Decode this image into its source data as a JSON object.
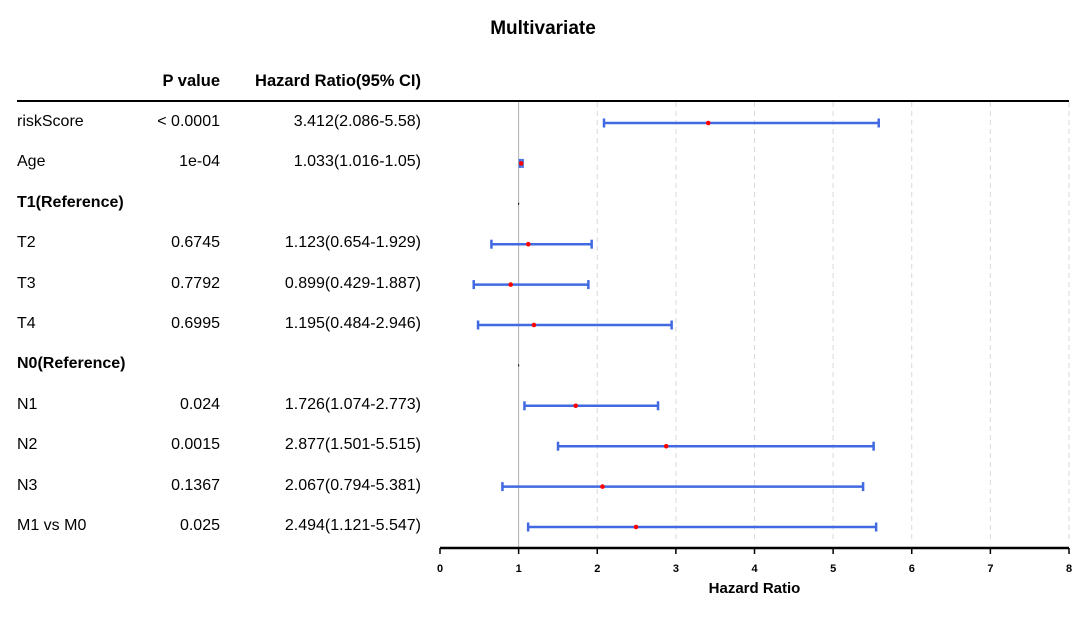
{
  "chart_data": {
    "type": "forest",
    "title": "Multivariate",
    "columns": {
      "pvalue": "P value",
      "hr": "Hazard Ratio(95% CI)"
    },
    "xlabel": "Hazard Ratio",
    "xlim": [
      0,
      8
    ],
    "xticks": [
      "0",
      "1",
      "2",
      "3",
      "4",
      "5",
      "6",
      "7",
      "8"
    ],
    "reference_line": 1,
    "grid": "vertical dashed",
    "colors": {
      "ci": "#4169e1",
      "point": "#ff0000",
      "grid": "#d9d9d9",
      "ref_line": "#b0b0b0"
    },
    "rows": [
      {
        "label": "riskScore",
        "pvalue": "< 0.0001",
        "hr_text": "3.412(2.086-5.58)",
        "hr": 3.412,
        "lo": 2.086,
        "hi": 5.58,
        "reference": false
      },
      {
        "label": "Age",
        "pvalue": "1e-04",
        "hr_text": "1.033(1.016-1.05)",
        "hr": 1.033,
        "lo": 1.016,
        "hi": 1.05,
        "reference": false
      },
      {
        "label": "T1(Reference)",
        "pvalue": "",
        "hr_text": "",
        "hr": 1,
        "lo": 1,
        "hi": 1,
        "reference": true
      },
      {
        "label": "T2",
        "pvalue": "0.6745",
        "hr_text": "1.123(0.654-1.929)",
        "hr": 1.123,
        "lo": 0.654,
        "hi": 1.929,
        "reference": false
      },
      {
        "label": "T3",
        "pvalue": "0.7792",
        "hr_text": "0.899(0.429-1.887)",
        "hr": 0.899,
        "lo": 0.429,
        "hi": 1.887,
        "reference": false
      },
      {
        "label": "T4",
        "pvalue": "0.6995",
        "hr_text": "1.195(0.484-2.946)",
        "hr": 1.195,
        "lo": 0.484,
        "hi": 2.946,
        "reference": false
      },
      {
        "label": "N0(Reference)",
        "pvalue": "",
        "hr_text": "",
        "hr": 1,
        "lo": 1,
        "hi": 1,
        "reference": true
      },
      {
        "label": "N1",
        "pvalue": "0.024",
        "hr_text": "1.726(1.074-2.773)",
        "hr": 1.726,
        "lo": 1.074,
        "hi": 2.773,
        "reference": false
      },
      {
        "label": "N2",
        "pvalue": "0.0015",
        "hr_text": "2.877(1.501-5.515)",
        "hr": 2.877,
        "lo": 1.501,
        "hi": 5.515,
        "reference": false
      },
      {
        "label": "N3",
        "pvalue": "0.1367",
        "hr_text": "2.067(0.794-5.381)",
        "hr": 2.067,
        "lo": 0.794,
        "hi": 5.381,
        "reference": false
      },
      {
        "label": "M1 vs M0",
        "pvalue": "0.025",
        "hr_text": "2.494(1.121-5.547)",
        "hr": 2.494,
        "lo": 1.121,
        "hi": 5.547,
        "reference": false
      }
    ]
  }
}
